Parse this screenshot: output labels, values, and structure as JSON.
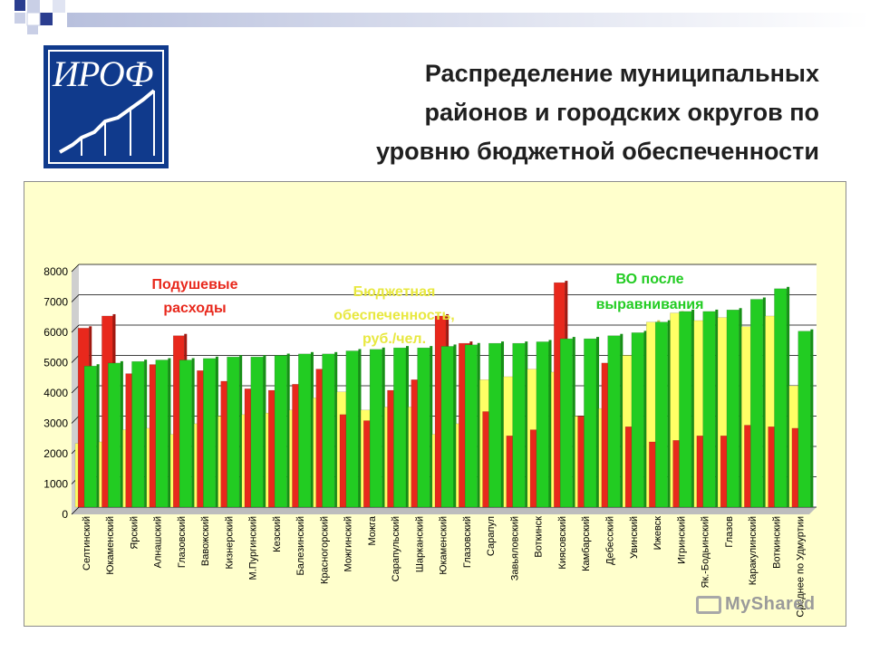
{
  "title_lines": [
    "Распределение муниципальных",
    "районов и городских округов по",
    "уровню бюджетной обеспеченности"
  ],
  "logo_text": "ИРОФ",
  "watermark": "MyShared",
  "colors": {
    "expense": "#e8281c",
    "security": "#ffff66",
    "after": "#22cc22",
    "title": "#1f1f1f",
    "logo_bg": "#103a8c"
  },
  "chart_data": {
    "type": "bar",
    "ylim": [
      0,
      8000
    ],
    "yticks": [
      0,
      1000,
      2000,
      3000,
      4000,
      5000,
      6000,
      7000,
      8000
    ],
    "categories": [
      "Селтинский",
      "Юкаменский",
      "Ярский",
      "Алнашский",
      "Глазовский",
      "Вавожский",
      "Кизнерский",
      "М.Пургинский",
      "Кезский",
      "Балезинский",
      "Красногорский",
      "Можгинский",
      "Можга",
      "Сарапульский",
      "Шарканский",
      "Юкаменский",
      "Глазовский",
      "Сарапул",
      "Завьяловский",
      "Воткинск",
      "Киясовский",
      "Камбарский",
      "Дебесский",
      "Увинский",
      "Ижевск",
      "Игринский",
      "Як.-Бодьинский",
      "Глазов",
      "Каракулинский",
      "Воткинский",
      "Среднее по Удмуртии"
    ],
    "annotations": [
      {
        "text": "Подушевые расходы",
        "series": "expense"
      },
      {
        "text": "Бюджетная обеспеченность, руб./чел.",
        "series": "security"
      },
      {
        "text": "ВО после выравнивания",
        "series": "after"
      }
    ],
    "series": [
      {
        "key": "expense",
        "values": [
          5900,
          6300,
          4400,
          4700,
          5650,
          4500,
          4150,
          3900,
          3850,
          4050,
          4550,
          3050,
          2850,
          3850,
          4200,
          6300,
          5400,
          3150,
          2350,
          2550,
          7400,
          3000,
          4750,
          2650,
          2150,
          2200,
          2350,
          2350,
          2700,
          2650,
          2600
        ]
      },
      {
        "key": "security",
        "values": [
          2100,
          2150,
          2550,
          2600,
          2400,
          2750,
          3000,
          3050,
          3100,
          3200,
          3600,
          3800,
          3200,
          3300,
          3300,
          2400,
          2750,
          4200,
          4300,
          4550,
          4450,
          3000,
          3250,
          5000,
          6100,
          6400,
          6150,
          6250,
          5950,
          6300,
          4000
        ]
      },
      {
        "key": "after",
        "values": [
          4650,
          4750,
          4800,
          4850,
          4850,
          4900,
          4950,
          4950,
          5000,
          5050,
          5050,
          5150,
          5200,
          5250,
          5250,
          5300,
          5350,
          5400,
          5400,
          5450,
          5550,
          5550,
          5650,
          5750,
          6100,
          6450,
          6450,
          6500,
          6850,
          7200,
          5800
        ]
      }
    ]
  }
}
